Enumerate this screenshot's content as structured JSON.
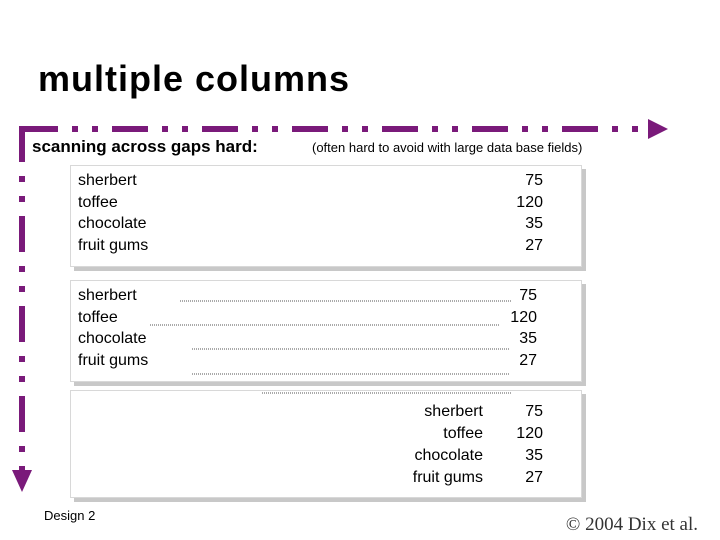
{
  "header": {
    "title": "multiple  columns",
    "subtitle": "scanning across gaps hard:",
    "note": "(often hard to avoid with large data base fields)"
  },
  "panels": [
    {
      "items": [
        {
          "name": "sherbert",
          "value": 75
        },
        {
          "name": "toffee",
          "value": 120
        },
        {
          "name": "chocolate",
          "value": 35
        },
        {
          "name": "fruit gums",
          "value": 27
        }
      ]
    },
    {
      "items": [
        {
          "name": "sherbert",
          "value": 75
        },
        {
          "name": "toffee",
          "value": 120
        },
        {
          "name": "chocolate",
          "value": 35
        },
        {
          "name": "fruit gums",
          "value": 27
        }
      ]
    },
    {
      "items": [
        {
          "name": "sherbert",
          "value": 75
        },
        {
          "name": "toffee",
          "value": 120
        },
        {
          "name": "chocolate",
          "value": 35
        },
        {
          "name": "fruit gums",
          "value": 27
        }
      ]
    }
  ],
  "footer": {
    "label": "Design 2",
    "copyright": "© 2004 Dix et al."
  }
}
